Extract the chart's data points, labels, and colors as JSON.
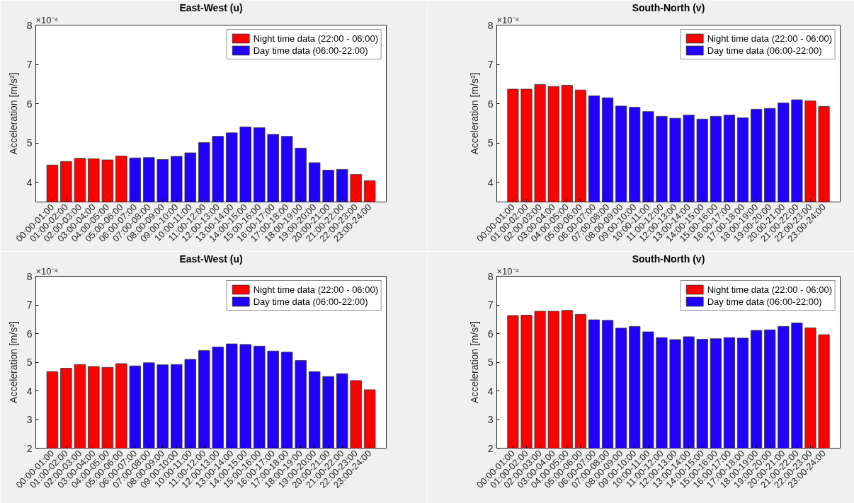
{
  "chart_data": [
    {
      "type": "bar",
      "title": "East-West (u)",
      "ylabel": "Acceleration [m/s²]",
      "annotations": [
        "×10⁻⁴"
      ],
      "categories": [
        "00:00-01:00",
        "01:00-02:00",
        "02:00-03:00",
        "03:00-04:00",
        "04:00-05:00",
        "05:00-06:00",
        "06:00-07:00",
        "07:00-08:00",
        "08:00-09:00",
        "09:00-10:00",
        "10:00-11:00",
        "11:00-12:00",
        "12:00-13:00",
        "13:00-14:00",
        "14:00-15:00",
        "15:00-16:00",
        "16:00-17:00",
        "17:00-18:00",
        "18:00-19:00",
        "19:00-20:00",
        "20:00-21:00",
        "21:00-22:00",
        "22:00-23:00",
        "23:00-24:00"
      ],
      "series": [
        {
          "name": "Night time data (22:00 - 06:00)",
          "color": "#ff0000",
          "values": [
            4.44,
            4.53,
            4.61,
            4.6,
            4.57,
            4.67,
            null,
            null,
            null,
            null,
            null,
            null,
            null,
            null,
            null,
            null,
            null,
            null,
            null,
            null,
            null,
            null,
            4.2,
            4.04
          ]
        },
        {
          "name": "Day time data (06:00-22:00)",
          "color": "#2000ff",
          "values": [
            null,
            null,
            null,
            null,
            null,
            null,
            4.62,
            4.63,
            4.58,
            4.66,
            4.75,
            5.01,
            5.17,
            5.26,
            5.41,
            5.39,
            5.22,
            5.17,
            4.87,
            4.5,
            4.31,
            4.33,
            null,
            null
          ]
        }
      ],
      "ylim": [
        3.5,
        8
      ],
      "yticks": [
        4,
        5,
        6,
        7,
        8
      ],
      "legend": "top right"
    },
    {
      "type": "bar",
      "title": "South-North (v)",
      "ylabel": "Acceleration [m/s²]",
      "annotations": [
        "×10⁻⁴"
      ],
      "categories": [
        "00:00-01:00",
        "01:00-02:00",
        "02:00-03:00",
        "03:00-04:00",
        "04:00-05:00",
        "05:00-06:00",
        "06:00-07:00",
        "07:00-08:00",
        "08:00-09:00",
        "09:00-10:00",
        "10:00-11:00",
        "11:00-12:00",
        "12:00-13:00",
        "13:00-14:00",
        "14:00-15:00",
        "15:00-16:00",
        "16:00-17:00",
        "17:00-18:00",
        "18:00-19:00",
        "19:00-20:00",
        "20:00-21:00",
        "21:00-22:00",
        "22:00-23:00",
        "23:00-24:00"
      ],
      "series": [
        {
          "name": "Night time data (22:00 - 06:00)",
          "color": "#ff0000",
          "values": [
            6.37,
            6.37,
            6.49,
            6.44,
            6.47,
            6.35,
            null,
            null,
            null,
            null,
            null,
            null,
            null,
            null,
            null,
            null,
            null,
            null,
            null,
            null,
            null,
            null,
            6.07,
            5.93
          ]
        },
        {
          "name": "Day time data (06:00-22:00)",
          "color": "#2000ff",
          "values": [
            null,
            null,
            null,
            null,
            null,
            null,
            6.2,
            6.15,
            5.94,
            5.91,
            5.8,
            5.68,
            5.63,
            5.71,
            5.61,
            5.68,
            5.71,
            5.64,
            5.86,
            5.88,
            6.02,
            6.1,
            null,
            null
          ]
        }
      ],
      "ylim": [
        3.5,
        8
      ],
      "yticks": [
        4,
        5,
        6,
        7,
        8
      ],
      "legend": "top right"
    },
    {
      "type": "bar",
      "title": "East-West (u)",
      "ylabel": "Acceleration [m/s²]",
      "annotations": [
        "×10⁻⁴"
      ],
      "categories": [
        "00:00-01:00",
        "01:00-02:00",
        "02:00-03:00",
        "03:00-04:00",
        "04:00-05:00",
        "05:00-06:00",
        "06:00-07:00",
        "07:00-08:00",
        "08:00-09:00",
        "09:00-10:00",
        "10:00-11:00",
        "11:00-12:00",
        "12:00-13:00",
        "13:00-14:00",
        "14:00-15:00",
        "15:00-16:00",
        "16:00-17:00",
        "17:00-18:00",
        "18:00-19:00",
        "19:00-20:00",
        "20:00-21:00",
        "21:00-22:00",
        "22:00-23:00",
        "23:00-24:00"
      ],
      "series": [
        {
          "name": "Night time data (22:00 - 06:00)",
          "color": "#ff0000",
          "values": [
            4.67,
            4.79,
            4.92,
            4.85,
            4.82,
            4.95,
            null,
            null,
            null,
            null,
            null,
            null,
            null,
            null,
            null,
            null,
            null,
            null,
            null,
            null,
            null,
            null,
            4.36,
            4.04
          ]
        },
        {
          "name": "Day time data (06:00-22:00)",
          "color": "#2000ff",
          "values": [
            null,
            null,
            null,
            null,
            null,
            null,
            4.87,
            4.98,
            4.91,
            4.92,
            5.1,
            5.41,
            5.53,
            5.64,
            5.62,
            5.56,
            5.39,
            5.35,
            5.06,
            4.67,
            4.5,
            4.6,
            null,
            null
          ]
        }
      ],
      "ylim": [
        2,
        8
      ],
      "yticks": [
        2,
        3,
        4,
        5,
        6,
        7,
        8
      ],
      "legend": "top right"
    },
    {
      "type": "bar",
      "title": "South-North (v)",
      "ylabel": "Acceleration [m/s²]",
      "annotations": [
        "×10⁻⁴"
      ],
      "categories": [
        "00:00-01:00",
        "01:00-02:00",
        "02:00-03:00",
        "03:00-04:00",
        "04:00-05:00",
        "05:00-06:00",
        "06:00-07:00",
        "07:00-08:00",
        "08:00-09:00",
        "09:00-10:00",
        "10:00-11:00",
        "11:00-12:00",
        "12:00-13:00",
        "13:00-14:00",
        "14:00-15:00",
        "15:00-16:00",
        "16:00-17:00",
        "17:00-18:00",
        "18:00-19:00",
        "19:00-20:00",
        "20:00-21:00",
        "21:00-22:00",
        "22:00-23:00",
        "23:00-24:00"
      ],
      "series": [
        {
          "name": "Night time data (22:00 - 06:00)",
          "color": "#ff0000",
          "values": [
            6.63,
            6.64,
            6.78,
            6.78,
            6.81,
            6.67,
            null,
            null,
            null,
            null,
            null,
            null,
            null,
            null,
            null,
            null,
            null,
            null,
            null,
            null,
            null,
            null,
            6.2,
            5.96
          ]
        },
        {
          "name": "Day time data (06:00-22:00)",
          "color": "#2000ff",
          "values": [
            null,
            null,
            null,
            null,
            null,
            null,
            6.48,
            6.46,
            6.19,
            6.25,
            6.06,
            5.86,
            5.79,
            5.89,
            5.8,
            5.82,
            5.86,
            5.84,
            6.11,
            6.13,
            6.25,
            6.37,
            null,
            null
          ]
        }
      ],
      "ylim": [
        2,
        8
      ],
      "yticks": [
        2,
        3,
        4,
        5,
        6,
        7,
        8
      ],
      "legend": "top right"
    }
  ]
}
